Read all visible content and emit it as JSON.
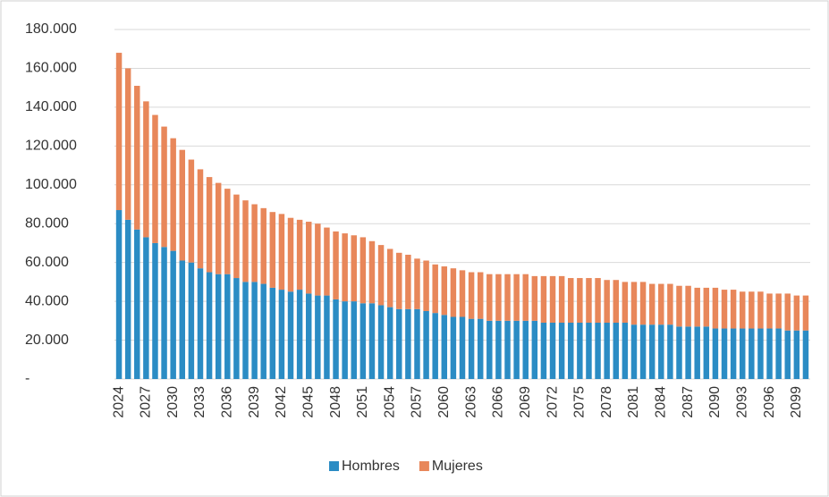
{
  "chart_data": {
    "type": "stacked_bar",
    "categories": [
      "2024",
      null,
      null,
      "2027",
      null,
      null,
      "2030",
      null,
      null,
      "2033",
      null,
      null,
      "2036",
      null,
      null,
      "2039",
      null,
      null,
      "2042",
      null,
      null,
      "2045",
      null,
      null,
      "2048",
      null,
      null,
      "2051",
      null,
      null,
      "2054",
      null,
      null,
      "2057",
      null,
      null,
      "2060",
      null,
      null,
      "2063",
      null,
      null,
      "2066",
      null,
      null,
      "2069",
      null,
      null,
      "2072",
      null,
      null,
      "2075",
      null,
      null,
      "2078",
      null,
      null,
      "2081",
      null,
      null,
      "2084",
      null,
      null,
      "2087",
      null,
      null,
      "2090",
      null,
      null,
      "2093",
      null,
      null,
      "2096",
      null,
      null,
      "2099",
      null
    ],
    "series": [
      {
        "name": "Hombres",
        "color": "#2b8cc4",
        "values": [
          87000,
          82000,
          77000,
          73000,
          70000,
          68000,
          66000,
          61000,
          60000,
          57000,
          55000,
          54000,
          54000,
          52000,
          50000,
          50000,
          49000,
          47000,
          46000,
          45000,
          46000,
          44000,
          43000,
          43000,
          41000,
          40000,
          40000,
          39000,
          39000,
          38000,
          37000,
          36000,
          36000,
          36000,
          35000,
          34000,
          33000,
          32000,
          32000,
          31000,
          31000,
          30000,
          30000,
          30000,
          30000,
          30000,
          30000,
          29000,
          29000,
          29000,
          29000,
          29000,
          29000,
          29000,
          29000,
          29000,
          29000,
          28000,
          28000,
          28000,
          28000,
          28000,
          27000,
          27000,
          27000,
          27000,
          26000,
          26000,
          26000,
          26000,
          26000,
          26000,
          26000,
          26000,
          25000,
          25000,
          25000
        ]
      },
      {
        "name": "Mujeres",
        "color": "#e8875a",
        "values": [
          81000,
          78000,
          74000,
          70000,
          66000,
          62000,
          58000,
          57000,
          53000,
          51000,
          49000,
          47000,
          44000,
          43000,
          42000,
          40000,
          39000,
          39000,
          39000,
          38000,
          36000,
          37000,
          37000,
          35000,
          35000,
          35000,
          34000,
          34000,
          32000,
          31000,
          30000,
          29000,
          28000,
          26000,
          26000,
          25000,
          25000,
          25000,
          24000,
          24000,
          24000,
          24000,
          24000,
          24000,
          24000,
          24000,
          23000,
          24000,
          24000,
          24000,
          23000,
          23000,
          23000,
          23000,
          22000,
          22000,
          21000,
          22000,
          22000,
          21000,
          21000,
          21000,
          21000,
          21000,
          20000,
          20000,
          21000,
          20000,
          20000,
          19000,
          19000,
          19000,
          18000,
          18000,
          19000,
          18000,
          18000
        ]
      }
    ],
    "ylim": [
      0,
      180000
    ],
    "yticks": [
      {
        "value": 0,
        "label": "-"
      },
      {
        "value": 20000,
        "label": "20.000"
      },
      {
        "value": 40000,
        "label": "40.000"
      },
      {
        "value": 60000,
        "label": "60.000"
      },
      {
        "value": 80000,
        "label": "80.000"
      },
      {
        "value": 100000,
        "label": "100.000"
      },
      {
        "value": 120000,
        "label": "120.000"
      },
      {
        "value": 140000,
        "label": "140.000"
      },
      {
        "value": 160000,
        "label": "160.000"
      },
      {
        "value": 180000,
        "label": "180.000"
      }
    ],
    "grid": true
  }
}
